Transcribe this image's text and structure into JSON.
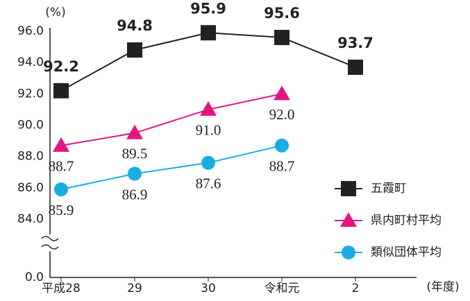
{
  "chart_data": {
    "type": "line",
    "y_unit": "(%)",
    "x_unit": "(年度)",
    "categories": [
      "平成28",
      "29",
      "30",
      "令和元",
      "2"
    ],
    "ylim": [
      0,
      96
    ],
    "axis_break": true,
    "yticks": [
      {
        "value": 0,
        "label": "0.0"
      },
      {
        "value": 84,
        "label": "84.0"
      },
      {
        "value": 86,
        "label": "86.0"
      },
      {
        "value": 88,
        "label": "88.0"
      },
      {
        "value": 90,
        "label": "90.0"
      },
      {
        "value": 92,
        "label": "92.0"
      },
      {
        "value": 94,
        "label": "94.0"
      },
      {
        "value": 96,
        "label": "96.0"
      }
    ],
    "series": [
      {
        "name": "五霞町",
        "color": "#222222",
        "marker": "square",
        "values": [
          92.2,
          94.8,
          95.9,
          95.6,
          93.7
        ],
        "value_labels": [
          "92.2",
          "94.8",
          "95.9",
          "95.6",
          "93.7"
        ]
      },
      {
        "name": "県内町村平均",
        "color": "#e4157f",
        "marker": "triangle",
        "values": [
          88.7,
          89.5,
          91.0,
          92.0,
          null
        ],
        "value_labels": [
          "88.7",
          "89.5",
          "91.0",
          "92.0",
          null
        ]
      },
      {
        "name": "類似団体平均",
        "color": "#18aee4",
        "marker": "circle",
        "values": [
          85.9,
          86.9,
          87.6,
          88.7,
          null
        ],
        "value_labels": [
          "85.9",
          "86.9",
          "87.6",
          "88.7",
          null
        ]
      }
    ]
  }
}
